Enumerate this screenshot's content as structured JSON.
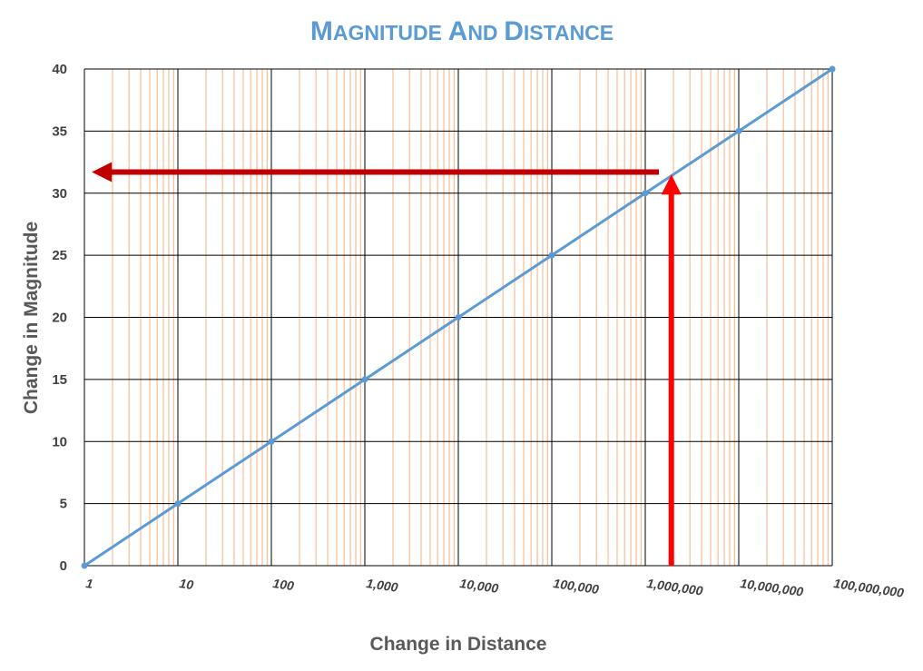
{
  "chart_data": {
    "type": "line",
    "title": "Magnitude and Distance",
    "xlabel": "Change in Distance",
    "ylabel": "Change in Magnitude",
    "x_scale": "log",
    "xlim": [
      1,
      100000000
    ],
    "ylim": [
      0,
      40
    ],
    "x_tick_labels": [
      "1",
      "10",
      "100",
      "1,000",
      "10,000",
      "100,000",
      "1,000,000",
      "10,000,000",
      "100,000,000"
    ],
    "y_tick_labels": [
      "0",
      "5",
      "10",
      "15",
      "20",
      "25",
      "30",
      "35",
      "40"
    ],
    "grid": true,
    "series": [
      {
        "color": "#5b9bd5",
        "points": [
          {
            "x": 1,
            "y": 0
          },
          {
            "x": 10,
            "y": 5
          },
          {
            "x": 100,
            "y": 10
          },
          {
            "x": 1000,
            "y": 15
          },
          {
            "x": 10000,
            "y": 20
          },
          {
            "x": 100000,
            "y": 25
          },
          {
            "x": 1000000,
            "y": 30
          },
          {
            "x": 10000000,
            "y": 35
          },
          {
            "x": 100000000,
            "y": 40
          }
        ]
      }
    ],
    "annotations": [
      {
        "type": "arrow-up",
        "color": "#ff0000",
        "x": 1900000,
        "y_from": 0,
        "y_to": 31.5
      },
      {
        "type": "arrow-left",
        "color": "#c00000",
        "y": 31.7,
        "x_from": 1400000,
        "x_to": 1.2
      }
    ],
    "colors": {
      "major_grid": "#000000",
      "minor_grid": "#f4b183",
      "title": "#5b9bd5"
    }
  }
}
